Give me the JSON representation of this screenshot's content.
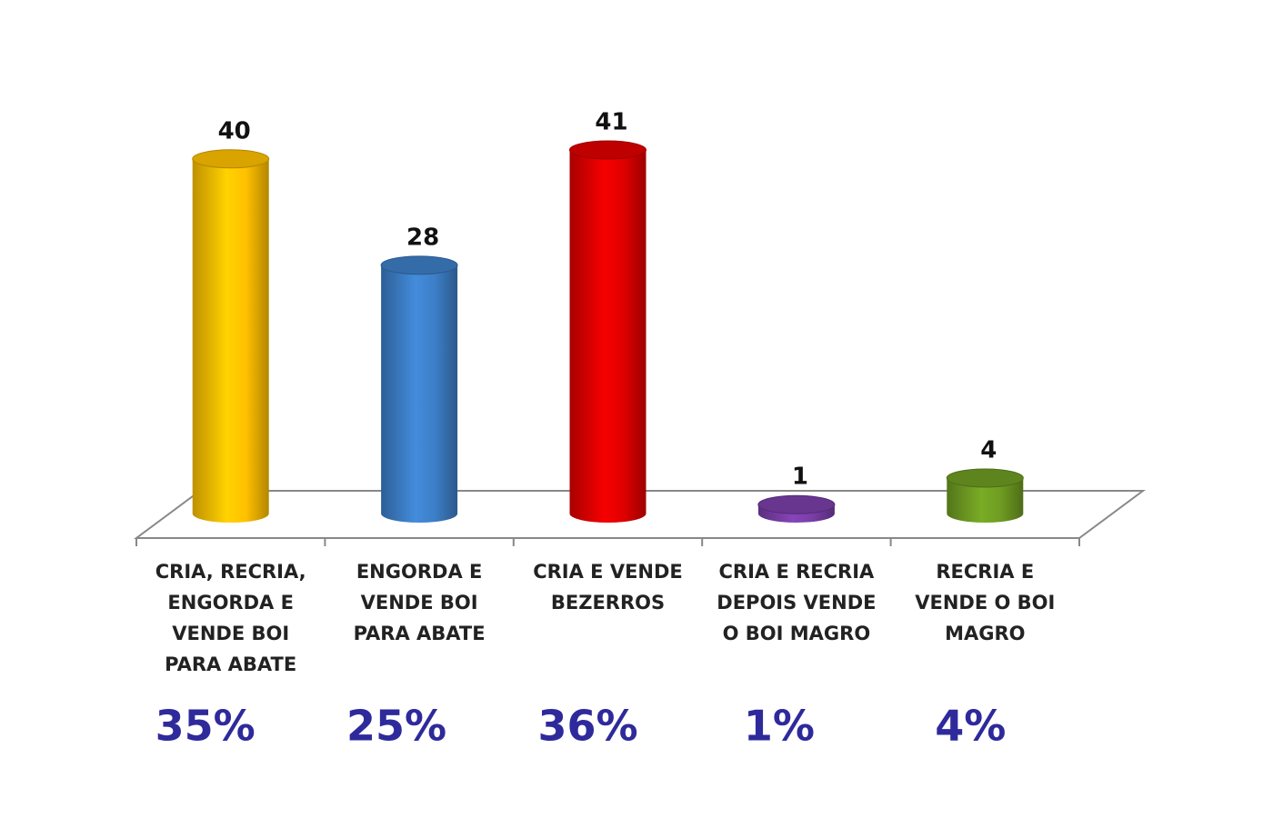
{
  "chart_data": {
    "type": "cylinder",
    "categories": [
      "CRIA, RECRIA, ENGORDA E VENDE BOI PARA ABATE",
      "ENGORDA E VENDE BOI PARA ABATE",
      "CRIA E VENDE BEZERROS",
      "CRIA E RECRIA DEPOIS VENDE O BOI MAGRO",
      "RECRIA E VENDE O BOI MAGRO"
    ],
    "values": [
      40,
      28,
      41,
      1,
      4
    ],
    "colors": [
      "#ffc000",
      "#3d7fc8",
      "#e00000",
      "#7a3ea8",
      "#6f9c22"
    ],
    "shares": {
      "values": [
        35,
        25,
        36,
        1,
        4
      ],
      "value_labels": [
        "35%",
        "25%",
        "36%",
        "1%",
        "4%"
      ],
      "color": "#2e2a9c"
    }
  }
}
